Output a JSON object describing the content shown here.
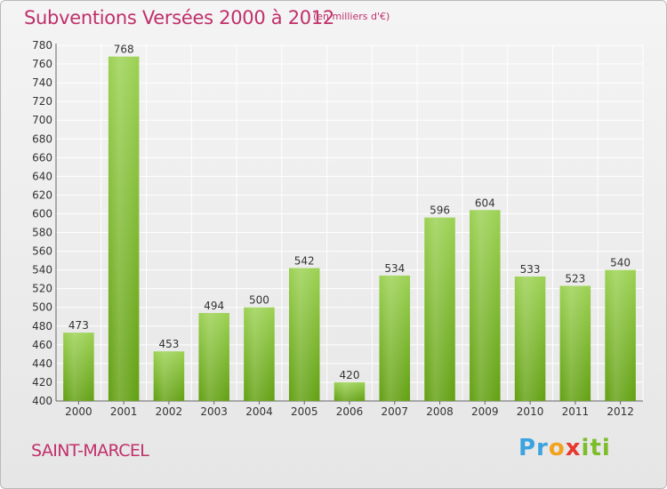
{
  "title": "Subventions Versées 2000 à 2012",
  "unit_note": "(en milliers d'€)",
  "commune": "SAINT-MARCEL",
  "logo": {
    "text": "Proxiti"
  },
  "colors": {
    "title": "#c0306a",
    "bar_light": "#9bd152",
    "bar_dark": "#62a012",
    "grid": "#ffffff"
  },
  "chart_data": {
    "type": "bar",
    "categories": [
      "2000",
      "2001",
      "2002",
      "2003",
      "2004",
      "2005",
      "2006",
      "2007",
      "2008",
      "2009",
      "2010",
      "2011",
      "2012"
    ],
    "values": [
      473,
      768,
      453,
      494,
      500,
      542,
      420,
      534,
      596,
      604,
      533,
      523,
      540
    ],
    "ylim": [
      400,
      780
    ],
    "yticks": [
      400,
      420,
      440,
      460,
      480,
      500,
      520,
      540,
      560,
      580,
      600,
      620,
      640,
      660,
      680,
      700,
      720,
      740,
      760,
      780
    ],
    "grid": true,
    "title": "Subventions Versées 2000 à 2012",
    "xlabel": "",
    "ylabel": ""
  }
}
